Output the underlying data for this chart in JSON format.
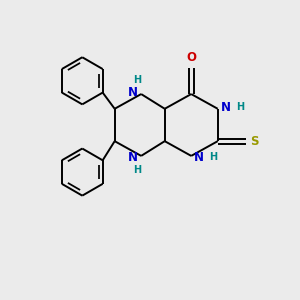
{
  "background_color": "#ebebeb",
  "bond_color": "#000000",
  "N_color": "#0000cc",
  "O_color": "#cc0000",
  "S_color": "#999900",
  "H_color": "#008888",
  "font_size_atom": 8.5,
  "font_size_H": 7.0,
  "line_width": 1.4,
  "figsize": [
    3.0,
    3.0
  ],
  "dpi": 100,
  "xlim": [
    0,
    10
  ],
  "ylim": [
    0,
    10
  ]
}
